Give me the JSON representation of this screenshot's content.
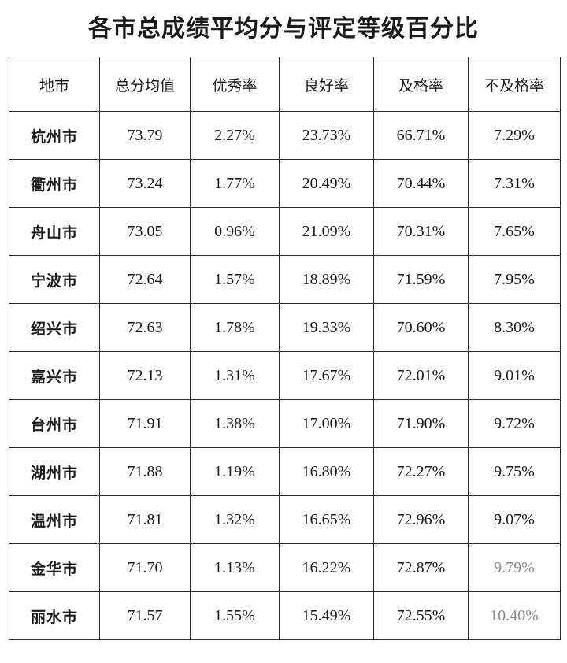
{
  "title": "各市总成绩平均分与评定等级百分比",
  "table": {
    "headers": [
      "地市",
      "总分均值",
      "优秀率",
      "良好率",
      "及格率",
      "不及格率"
    ],
    "rows": [
      [
        "杭州市",
        "73.79",
        "2.27%",
        "23.73%",
        "66.71%",
        "7.29%"
      ],
      [
        "衢州市",
        "73.24",
        "1.77%",
        "20.49%",
        "70.44%",
        "7.31%"
      ],
      [
        "舟山市",
        "73.05",
        "0.96%",
        "21.09%",
        "70.31%",
        "7.65%"
      ],
      [
        "宁波市",
        "72.64",
        "1.57%",
        "18.89%",
        "71.59%",
        "7.95%"
      ],
      [
        "绍兴市",
        "72.63",
        "1.78%",
        "19.33%",
        "70.60%",
        "8.30%"
      ],
      [
        "嘉兴市",
        "72.13",
        "1.31%",
        "17.67%",
        "72.01%",
        "9.01%"
      ],
      [
        "台州市",
        "71.91",
        "1.38%",
        "17.00%",
        "71.90%",
        "9.72%"
      ],
      [
        "湖州市",
        "71.88",
        "1.19%",
        "16.80%",
        "72.27%",
        "9.75%"
      ],
      [
        "温州市",
        "71.81",
        "1.32%",
        "16.65%",
        "72.96%",
        "9.07%"
      ],
      [
        "金华市",
        "71.70",
        "1.13%",
        "16.22%",
        "72.87%",
        "9.79%"
      ],
      [
        "丽水市",
        "71.57",
        "1.55%",
        "15.49%",
        "72.55%",
        "10.40%"
      ]
    ]
  }
}
